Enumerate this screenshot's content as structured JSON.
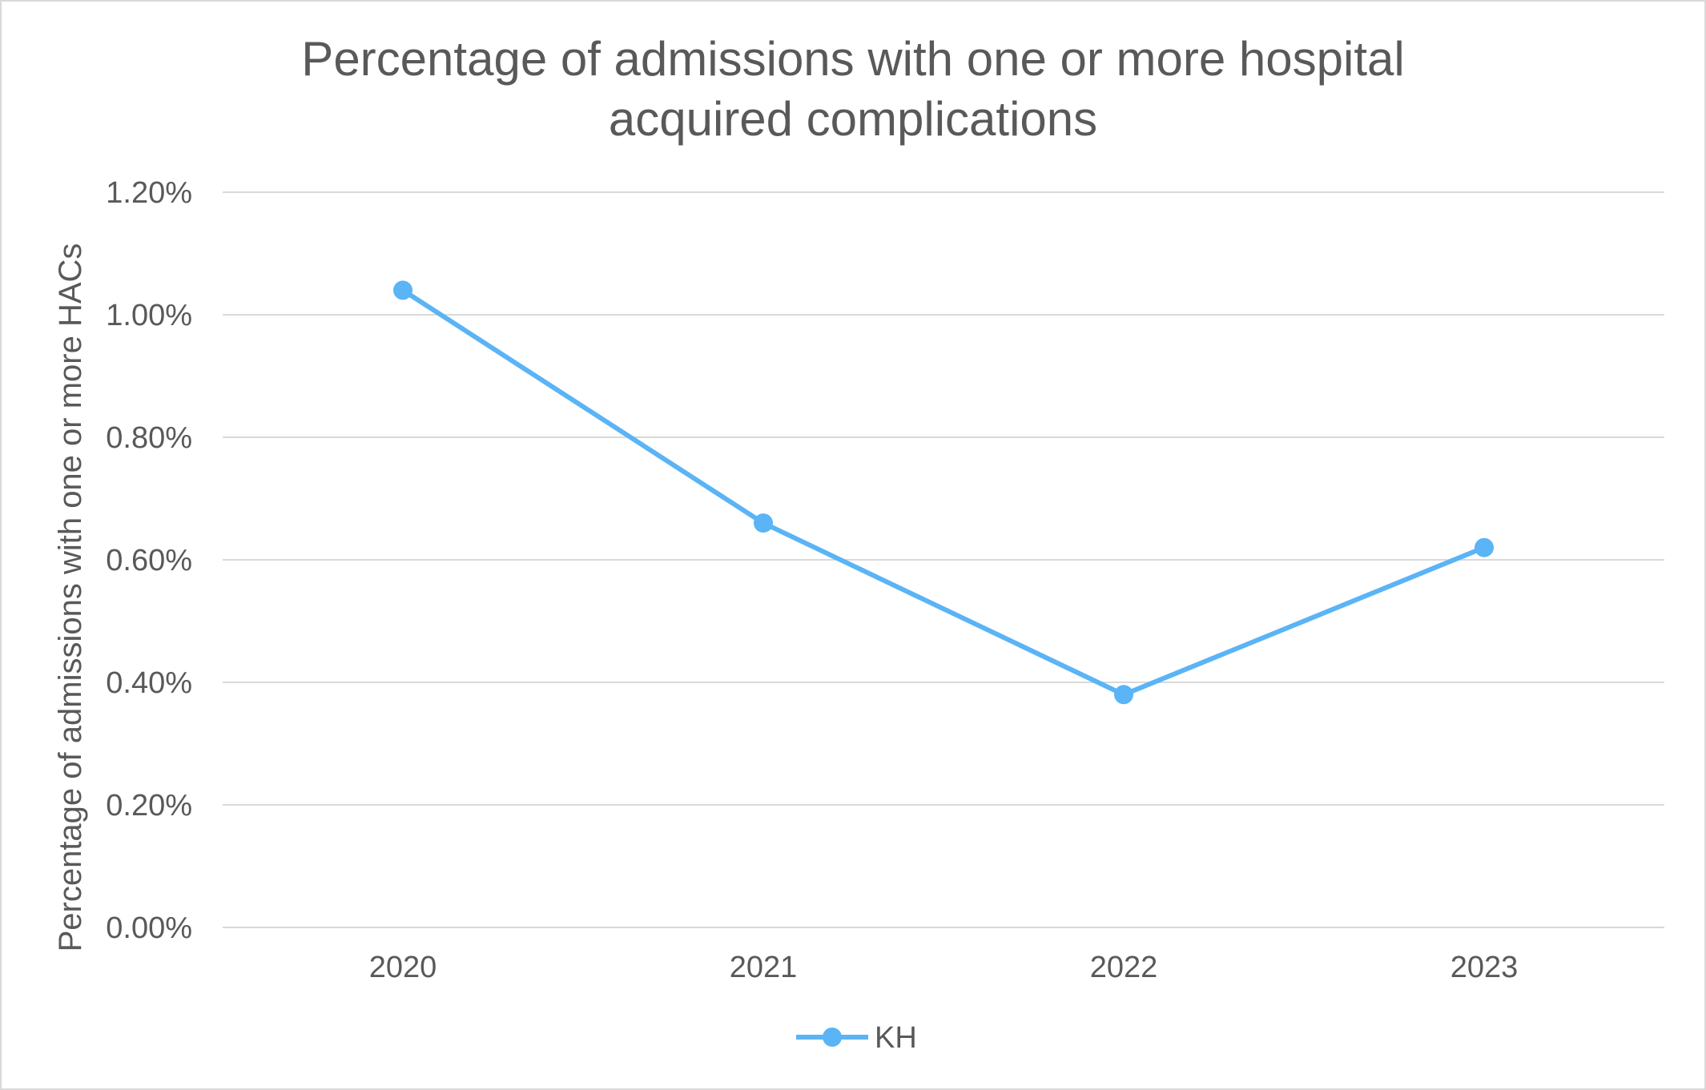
{
  "chart_data": {
    "type": "line",
    "title": "Percentage of admissions with one or more hospital acquired complications",
    "title_lines": [
      "Percentage of admissions with one or more hospital",
      "acquired complications"
    ],
    "xlabel": "",
    "ylabel": "Percentage of admissions with one or more HACs",
    "categories": [
      "2020",
      "2021",
      "2022",
      "2023"
    ],
    "series": [
      {
        "name": "KH",
        "values": [
          1.04,
          0.66,
          0.38,
          0.62
        ],
        "color": "#5ab4f5"
      }
    ],
    "ylim": [
      0,
      1.2
    ],
    "y_ticks": [
      0,
      0.2,
      0.4,
      0.6,
      0.8,
      1.0,
      1.2
    ],
    "y_tick_labels": [
      "0.00%",
      "0.20%",
      "0.40%",
      "0.60%",
      "0.80%",
      "1.00%",
      "1.20%"
    ],
    "grid": true,
    "gridline_color": "#d9d9d9",
    "text_color": "#595959",
    "legend_position": "bottom"
  }
}
